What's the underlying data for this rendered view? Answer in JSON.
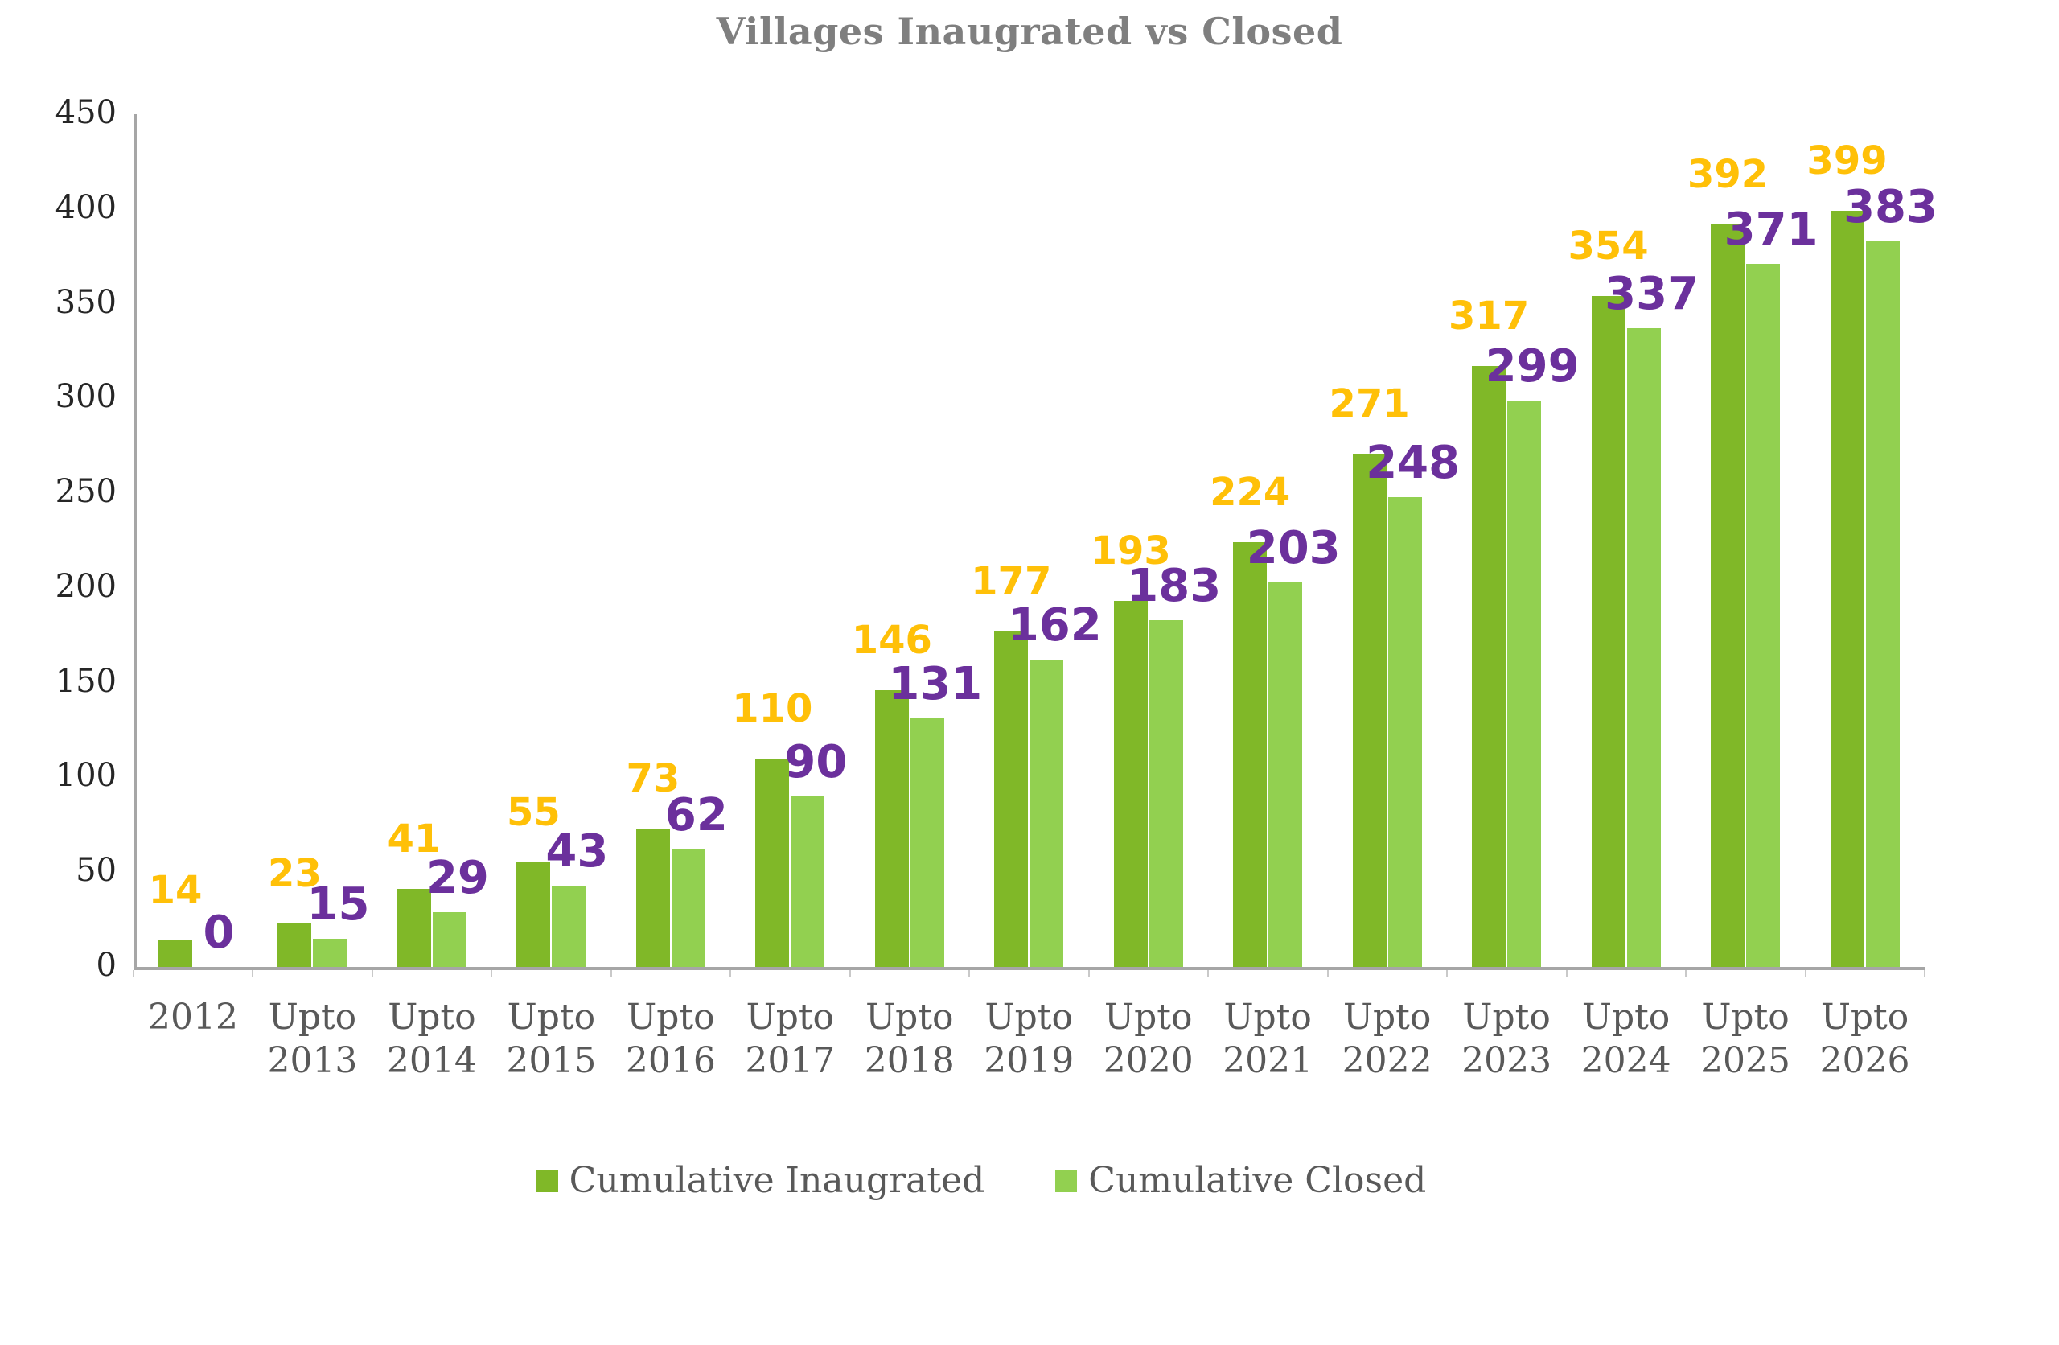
{
  "title": "Villages Inaugrated vs Closed",
  "chart_data": {
    "type": "bar",
    "title": "Villages Inaugrated vs Closed",
    "categories": [
      "2012",
      "Upto 2013",
      "Upto 2014",
      "Upto 2015",
      "Upto 2016",
      "Upto 2017",
      "Upto 2018",
      "Upto 2019",
      "Upto 2020",
      "Upto 2021",
      "Upto 2022",
      "Upto 2023",
      "Upto 2024",
      "Upto 2025",
      "Upto 2026"
    ],
    "series": [
      {
        "name": "Cumulative Inaugrated",
        "values": [
          14,
          23,
          41,
          55,
          73,
          110,
          146,
          177,
          193,
          224,
          271,
          317,
          354,
          392,
          399
        ],
        "bar_color": "#80B828",
        "label_color": "#FFC008"
      },
      {
        "name": "Cumulative Closed",
        "values": [
          0,
          15,
          29,
          43,
          62,
          90,
          131,
          162,
          183,
          203,
          248,
          299,
          337,
          371,
          383
        ],
        "bar_color": "#92D050",
        "label_color": "#6B309C"
      }
    ],
    "xlabel": "",
    "ylabel": "",
    "ylim": [
      0,
      450
    ],
    "ytick_step": 50,
    "yticks": [
      0,
      50,
      100,
      150,
      200,
      250,
      300,
      350,
      400,
      450
    ],
    "grid": false,
    "data_labels": true,
    "legend_position": "bottom"
  },
  "style_colors": {
    "title_text": "#7f7f7f",
    "axis_line": "#a6a6a6",
    "ytick_text": "#262626",
    "xtick_text": "#595959",
    "legend_text": "#595959",
    "background": "#ffffff"
  }
}
